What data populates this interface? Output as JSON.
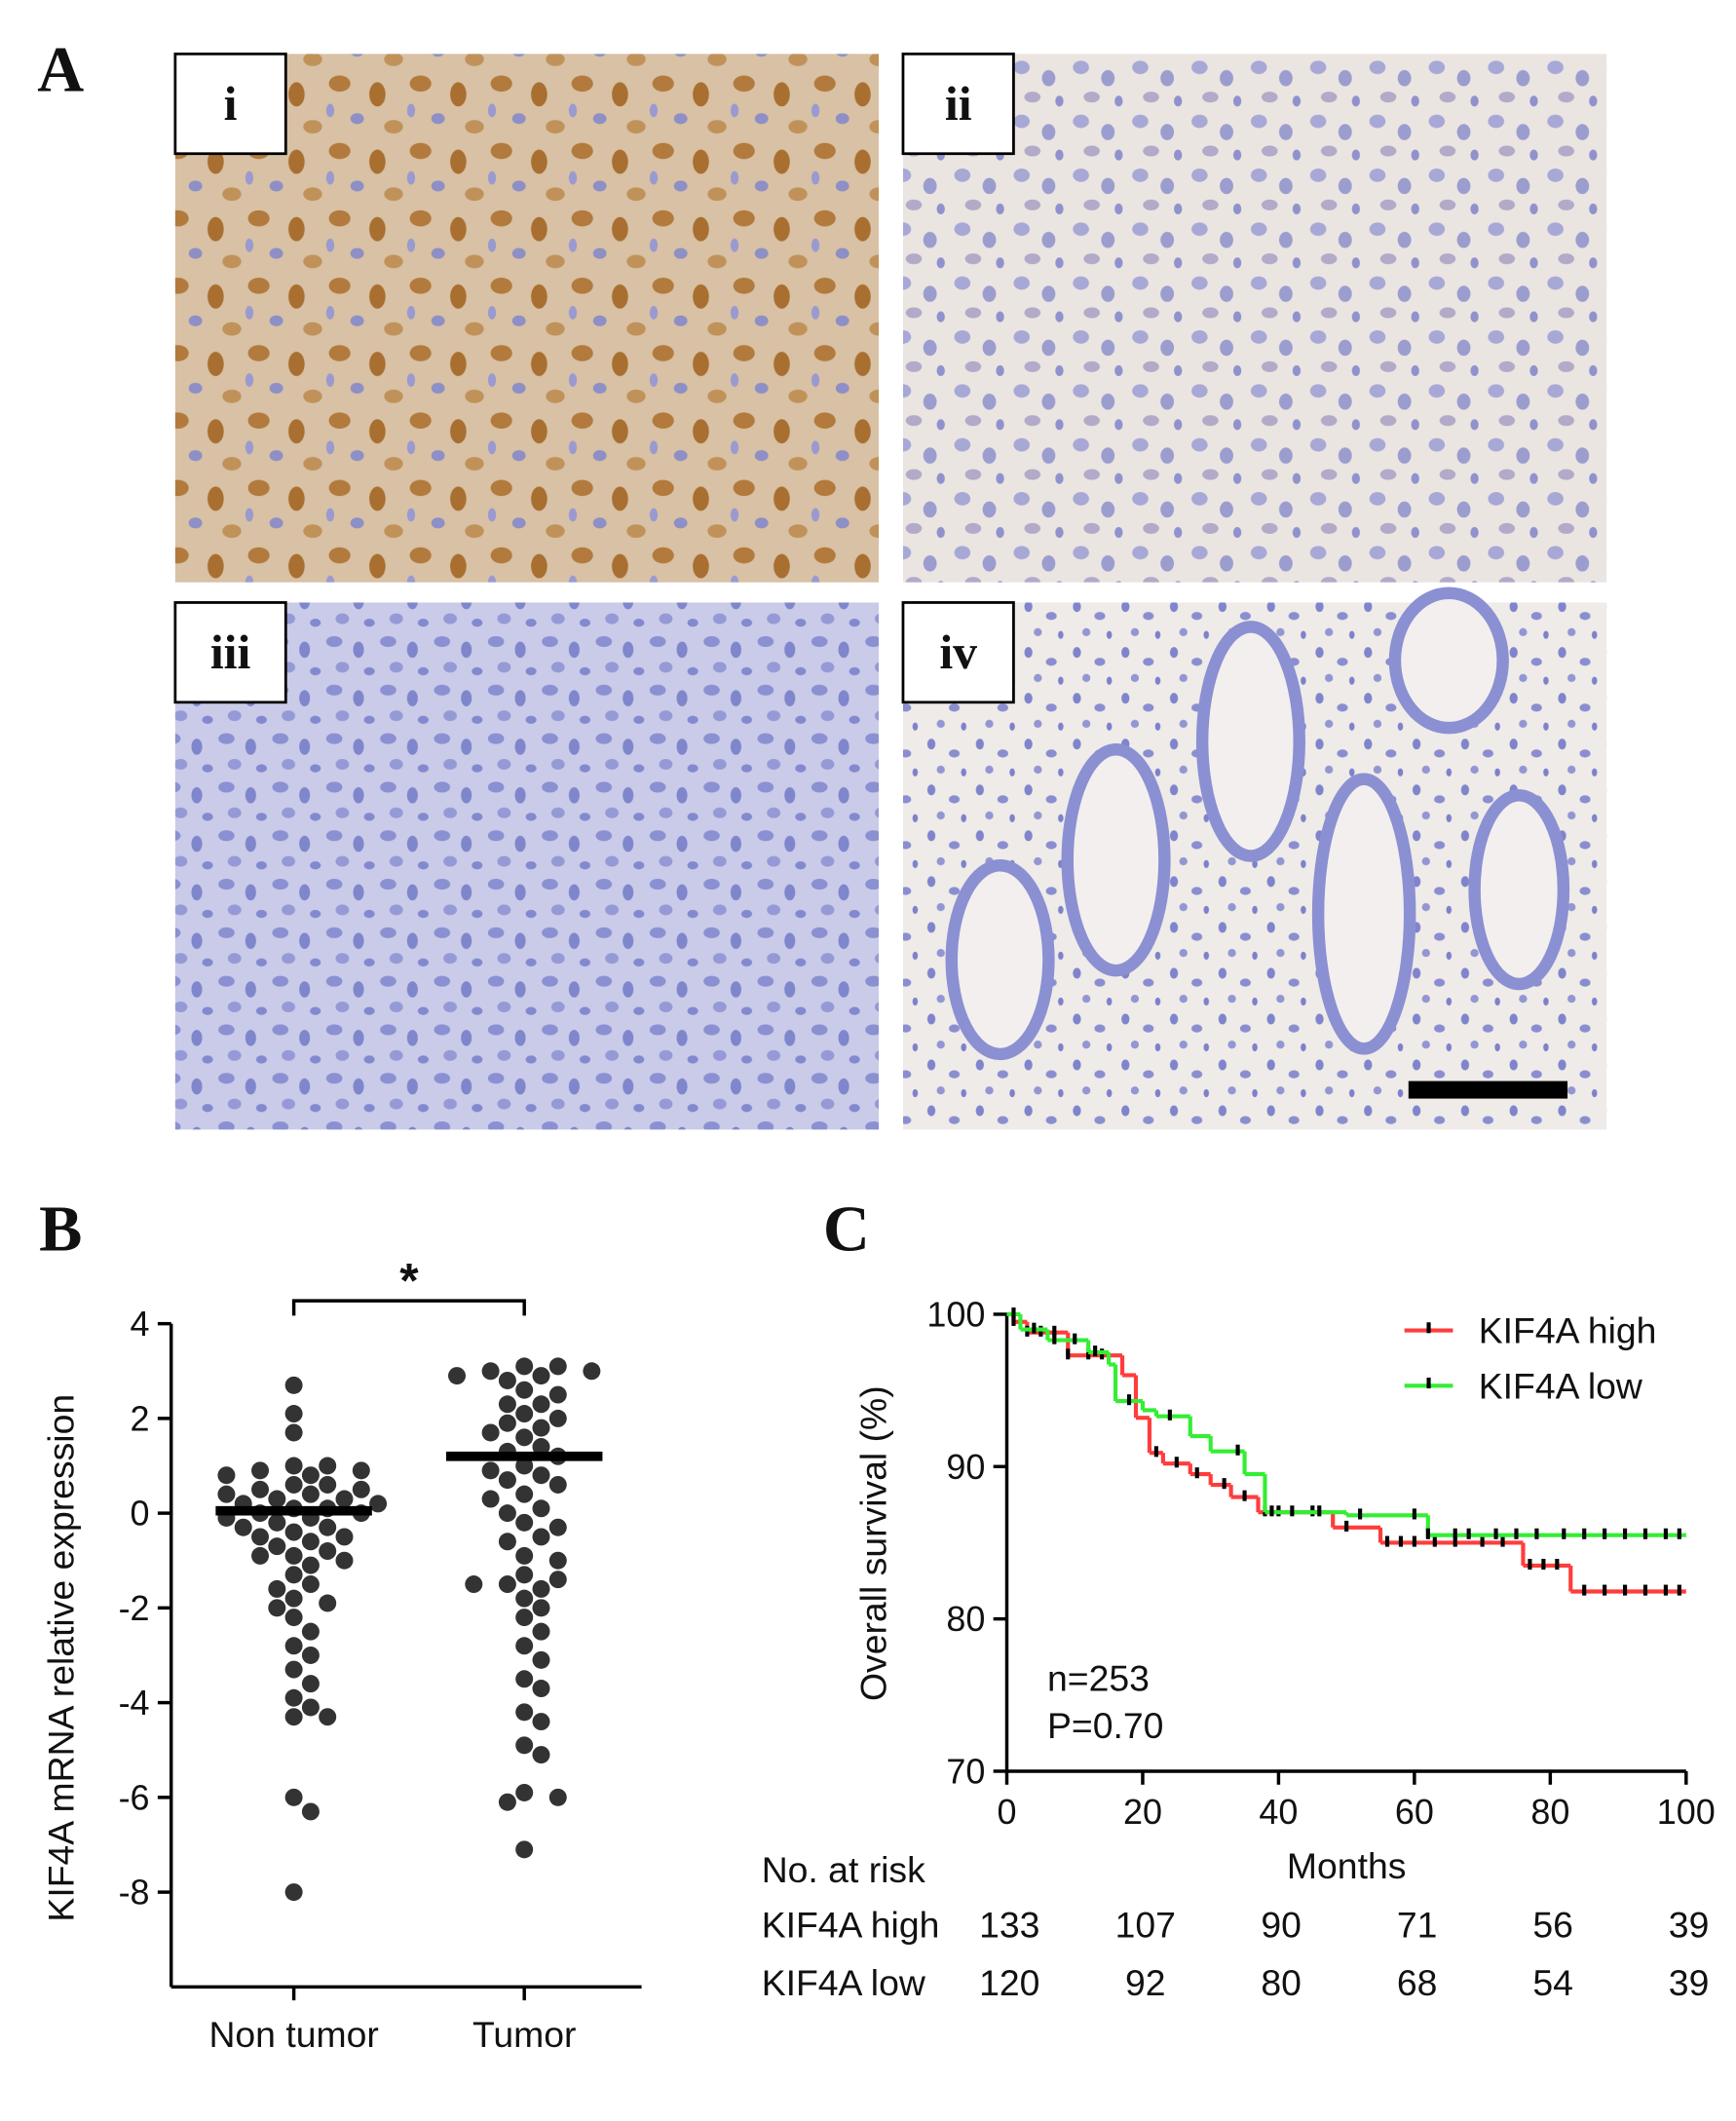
{
  "panel_a": {
    "label": "A",
    "images": [
      {
        "label": "i"
      },
      {
        "label": "ii"
      },
      {
        "label": "iii"
      },
      {
        "label": "iv"
      }
    ]
  },
  "chart_data": [
    {
      "type": "strip",
      "panel_label": "B",
      "ylabel": "KIF4A mRNA relative expression",
      "categories": [
        "Non tumor",
        "Tumor"
      ],
      "values": [
        [
          2.7,
          2.1,
          1.7,
          1.0,
          1.0,
          0.9,
          0.9,
          0.8,
          0.8,
          0.6,
          0.6,
          0.5,
          0.5,
          0.4,
          0.4,
          0.3,
          0.3,
          0.2,
          0.2,
          0.1,
          0.1,
          0.0,
          0.0,
          -0.1,
          -0.1,
          -0.2,
          -0.3,
          -0.3,
          -0.4,
          -0.5,
          -0.5,
          -0.6,
          -0.7,
          -0.8,
          -0.9,
          -0.9,
          -1.0,
          -1.1,
          -1.3,
          -1.5,
          -1.6,
          -1.8,
          -1.9,
          -2.0,
          -2.2,
          -2.5,
          -2.8,
          -3.0,
          -3.3,
          -3.6,
          -3.9,
          -4.1,
          -4.3,
          -4.3,
          -6.0,
          -6.3,
          -8.0
        ],
        [
          3.1,
          3.1,
          3.0,
          3.0,
          2.9,
          2.9,
          2.8,
          2.6,
          2.5,
          2.3,
          2.3,
          2.1,
          2.0,
          1.9,
          1.8,
          1.7,
          1.6,
          1.4,
          1.3,
          1.2,
          1.0,
          0.9,
          0.8,
          0.7,
          0.6,
          0.4,
          0.3,
          0.1,
          0.0,
          -0.2,
          -0.3,
          -0.5,
          -0.6,
          -0.9,
          -1.0,
          -1.3,
          -1.4,
          -1.5,
          -1.5,
          -1.6,
          -1.8,
          -2.0,
          -2.2,
          -2.5,
          -2.8,
          -3.1,
          -3.5,
          -3.7,
          -4.2,
          -4.4,
          -4.9,
          -5.1,
          -5.9,
          -6.0,
          -6.1,
          -7.1
        ]
      ],
      "means": [
        0.05,
        1.2
      ],
      "color": "#333333",
      "annotation": "*",
      "ylim": [
        -10,
        4
      ],
      "yticks": [
        -8,
        -6,
        -4,
        -2,
        0,
        2,
        4
      ]
    },
    {
      "type": "km",
      "panel_label": "C",
      "xlabel": "Months",
      "ylabel": "Overall survival (%)",
      "xlim": [
        0,
        100
      ],
      "xticks": [
        0,
        20,
        40,
        60,
        80,
        100
      ],
      "ylim": [
        70,
        100
      ],
      "yticks": [
        70,
        80,
        90,
        100
      ],
      "legend": "upper right",
      "annotations": [
        "n=253",
        "P=0.70"
      ],
      "censor_color": "#000000",
      "series": [
        {
          "name": "KIF4A high",
          "color": "#ff3c3c",
          "x": [
            0,
            1,
            3,
            9,
            17,
            19,
            21,
            23,
            27,
            30,
            33,
            37,
            48,
            55,
            76,
            83
          ],
          "values": [
            100,
            99.5,
            98.8,
            97.3,
            96,
            93.2,
            90.9,
            90.2,
            89.5,
            88.8,
            88,
            87,
            86,
            85,
            83.5,
            81.8
          ],
          "censored": [
            1,
            3,
            5,
            7,
            9,
            12,
            14,
            22,
            25,
            28,
            32,
            35,
            38,
            40,
            45,
            50,
            56,
            58,
            60,
            63,
            66,
            70,
            73,
            77,
            79,
            81,
            85,
            88,
            91,
            94,
            97,
            99
          ]
        },
        {
          "name": "KIF4A low",
          "color": "#33ee33",
          "x": [
            0,
            2,
            6,
            12,
            15,
            16,
            20,
            22,
            27,
            30,
            35,
            38,
            50,
            62
          ],
          "values": [
            100,
            99,
            98.3,
            97.5,
            96.7,
            94.3,
            93.7,
            93.3,
            92,
            91,
            89.5,
            87,
            86.8,
            85.5
          ],
          "censored": [
            1,
            4,
            7,
            10,
            13,
            18,
            24,
            34,
            39,
            42,
            46,
            52,
            60,
            62,
            66,
            68,
            72,
            75,
            78,
            82,
            85,
            88,
            91,
            94,
            97,
            99
          ]
        }
      ],
      "risk_table": {
        "title": "No. at risk",
        "rows": [
          {
            "name": "KIF4A high",
            "values": [
              133,
              107,
              90,
              71,
              56,
              39
            ]
          },
          {
            "name": "KIF4A low",
            "values": [
              120,
              92,
              80,
              68,
              54,
              39
            ]
          }
        ]
      }
    }
  ]
}
